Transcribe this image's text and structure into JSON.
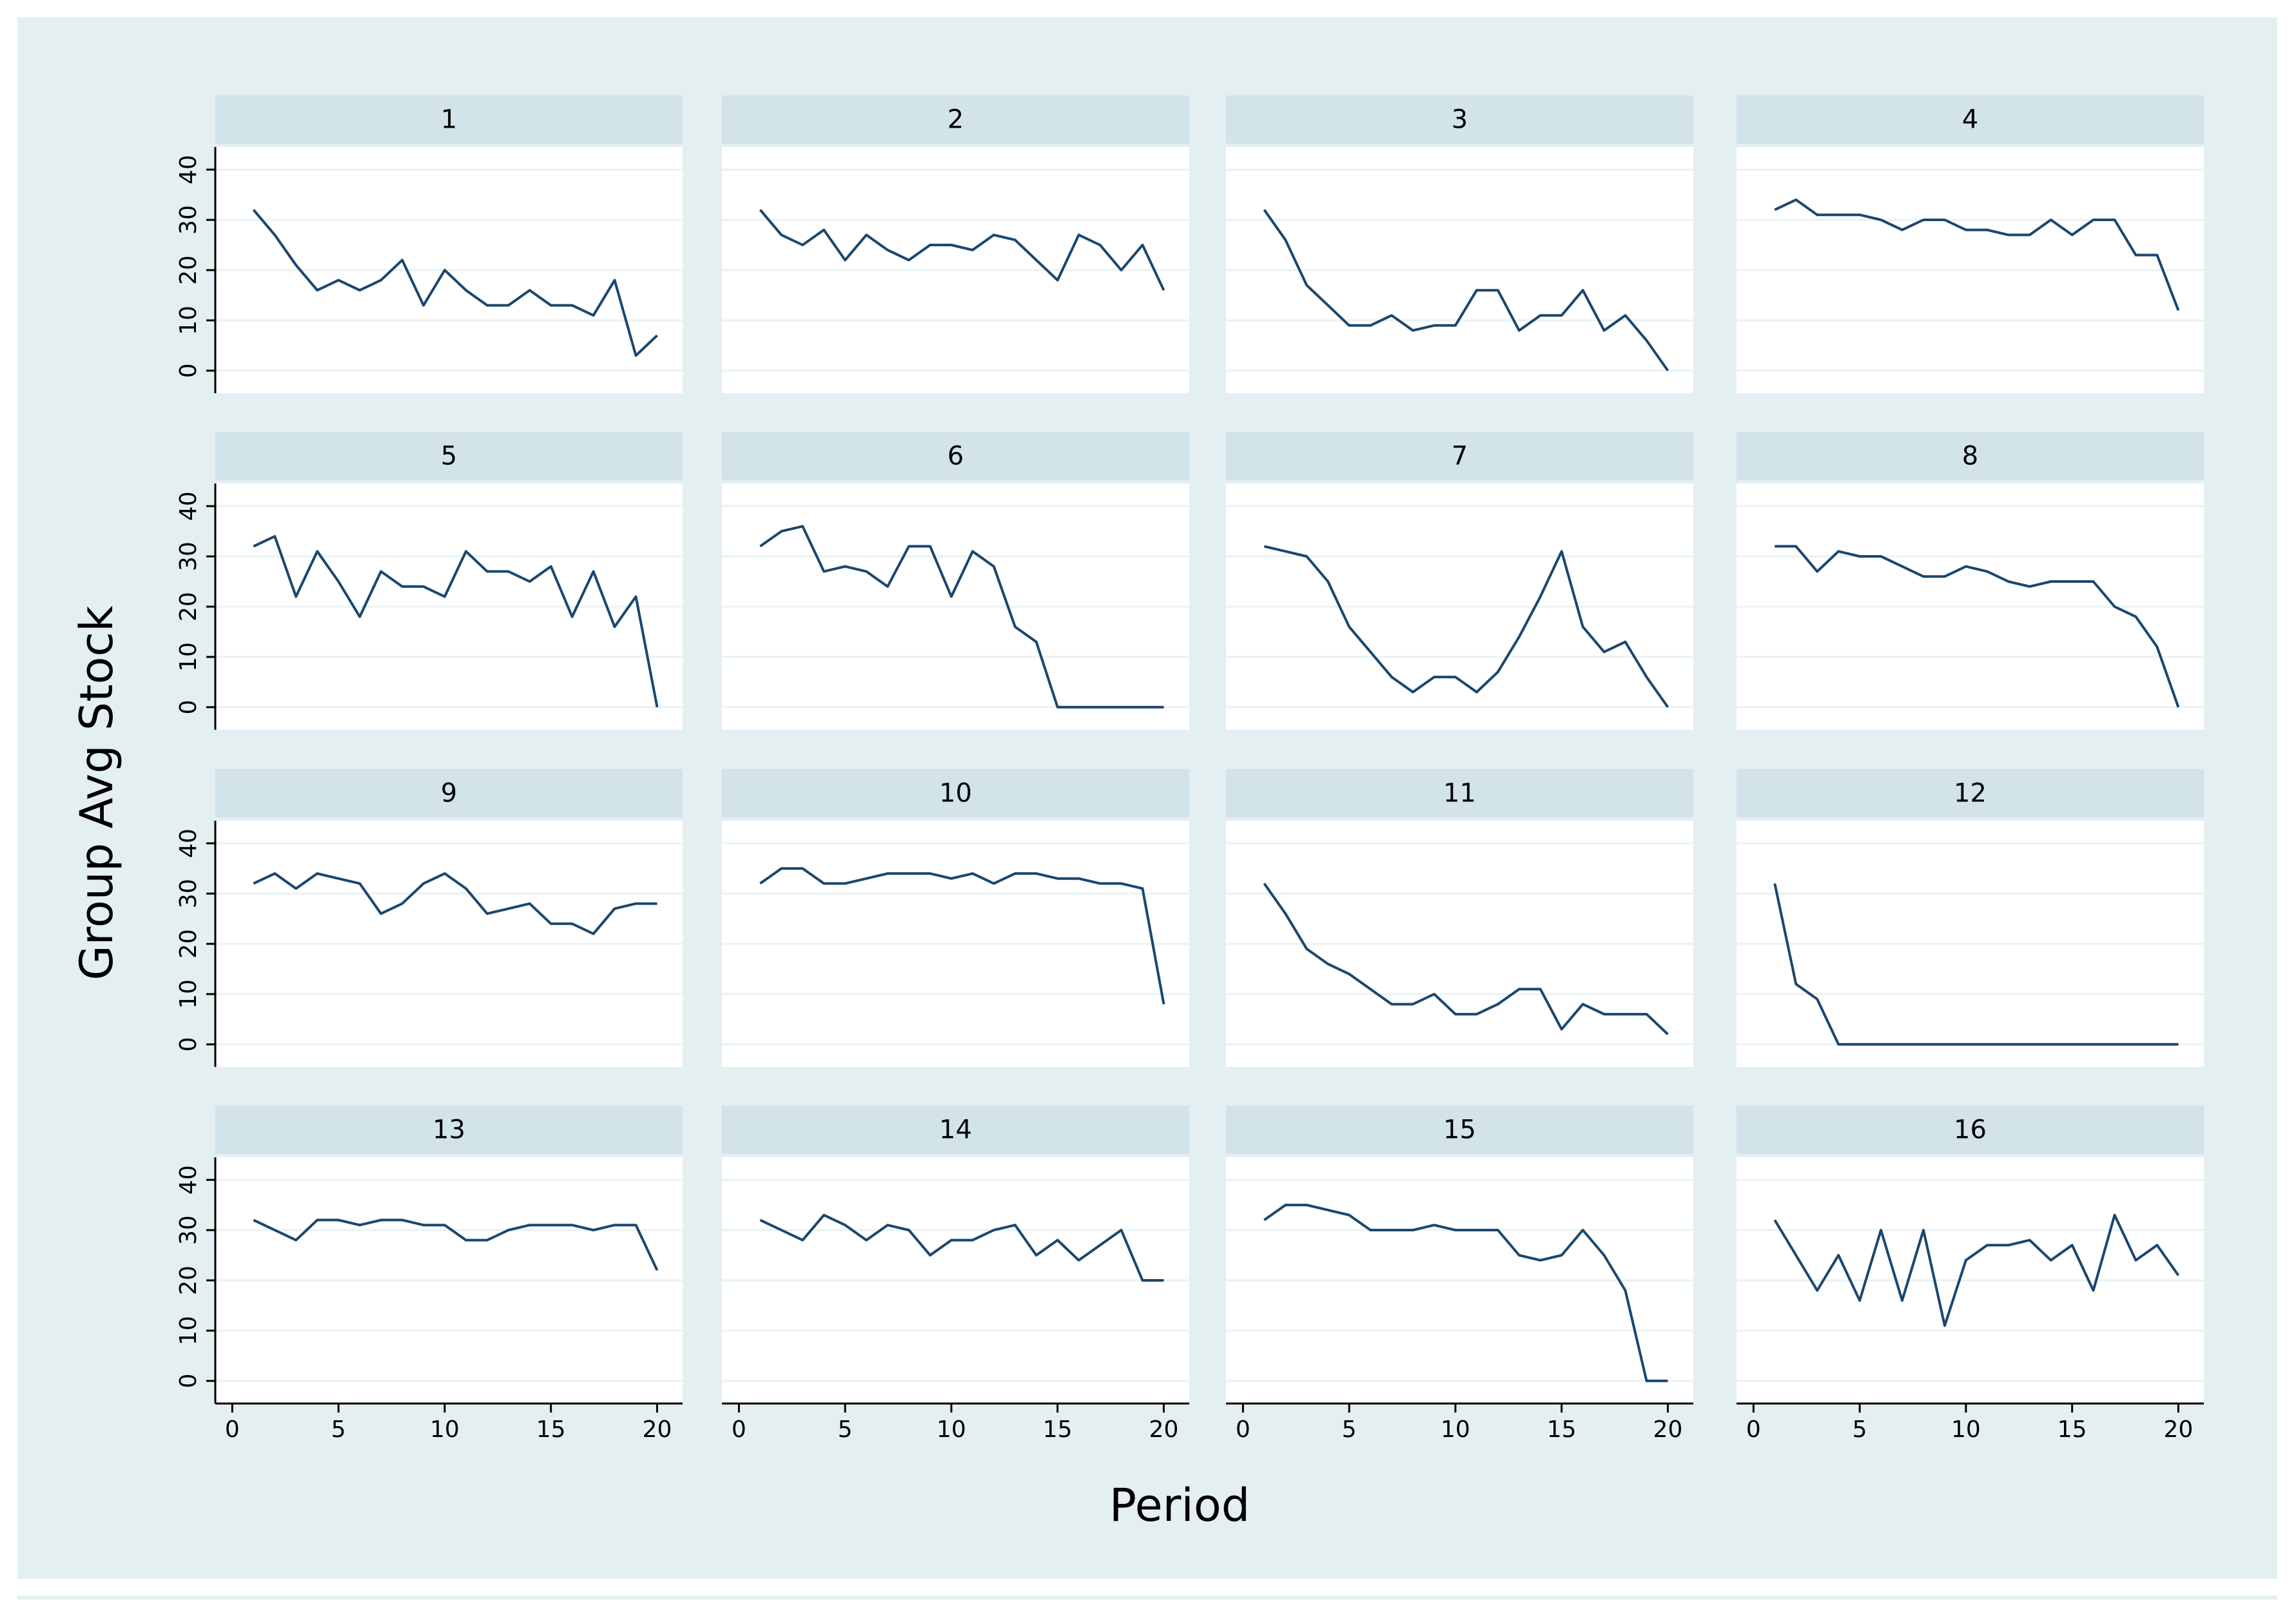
{
  "chart_data": {
    "type": "line",
    "xlabel": "Period",
    "ylabel": "Group Avg Stock",
    "color": "#1a476f",
    "grid": true,
    "x": [
      1,
      2,
      3,
      4,
      5,
      6,
      7,
      8,
      9,
      10,
      11,
      12,
      13,
      14,
      15,
      16,
      17,
      18,
      19,
      20
    ],
    "xlim": [
      -0.8,
      21.2
    ],
    "xticks": [
      0,
      5,
      10,
      15,
      20
    ],
    "ylim": [
      -4.5,
      44.5
    ],
    "yticks": [
      0,
      10,
      20,
      30,
      40
    ],
    "series": [
      {
        "name": "1",
        "values": [
          32,
          27,
          21,
          16,
          18,
          16,
          18,
          22,
          13,
          20,
          16,
          13,
          13,
          16,
          13,
          13,
          11,
          18,
          3,
          7
        ]
      },
      {
        "name": "2",
        "values": [
          32,
          27,
          25,
          28,
          22,
          27,
          24,
          22,
          25,
          25,
          24,
          27,
          26,
          22,
          18,
          27,
          25,
          20,
          25,
          16
        ]
      },
      {
        "name": "3",
        "values": [
          32,
          26,
          17,
          13,
          9,
          9,
          11,
          8,
          9,
          9,
          16,
          16,
          8,
          11,
          11,
          16,
          8,
          11,
          6,
          0
        ]
      },
      {
        "name": "4",
        "values": [
          32,
          34,
          31,
          31,
          31,
          30,
          28,
          30,
          30,
          28,
          28,
          27,
          27,
          30,
          27,
          30,
          30,
          23,
          23,
          12
        ]
      },
      {
        "name": "5",
        "values": [
          32,
          34,
          22,
          31,
          25,
          18,
          27,
          24,
          24,
          22,
          31,
          27,
          27,
          25,
          28,
          18,
          27,
          16,
          22,
          0
        ]
      },
      {
        "name": "6",
        "values": [
          32,
          35,
          36,
          27,
          28,
          27,
          24,
          32,
          32,
          22,
          31,
          28,
          16,
          13,
          0,
          0,
          0,
          0,
          0,
          0
        ]
      },
      {
        "name": "7",
        "values": [
          32,
          31,
          30,
          25,
          16,
          11,
          6,
          3,
          6,
          6,
          3,
          7,
          14,
          22,
          31,
          16,
          11,
          13,
          6,
          0
        ]
      },
      {
        "name": "8",
        "values": [
          32,
          32,
          27,
          31,
          30,
          30,
          28,
          26,
          26,
          28,
          27,
          25,
          24,
          25,
          25,
          25,
          20,
          18,
          12,
          0
        ]
      },
      {
        "name": "9",
        "values": [
          32,
          34,
          31,
          34,
          33,
          32,
          26,
          28,
          32,
          34,
          31,
          26,
          27,
          28,
          24,
          24,
          22,
          27,
          28,
          28
        ]
      },
      {
        "name": "10",
        "values": [
          32,
          35,
          35,
          32,
          32,
          33,
          34,
          34,
          34,
          33,
          34,
          32,
          34,
          34,
          33,
          33,
          32,
          32,
          31,
          8
        ]
      },
      {
        "name": "11",
        "values": [
          32,
          26,
          19,
          16,
          14,
          11,
          8,
          8,
          10,
          6,
          6,
          8,
          11,
          11,
          3,
          8,
          6,
          6,
          6,
          2
        ]
      },
      {
        "name": "12",
        "values": [
          32,
          12,
          9,
          0,
          0,
          0,
          0,
          0,
          0,
          0,
          0,
          0,
          0,
          0,
          0,
          0,
          0,
          0,
          0,
          0
        ]
      },
      {
        "name": "13",
        "values": [
          32,
          30,
          28,
          32,
          32,
          31,
          32,
          32,
          31,
          31,
          28,
          28,
          30,
          31,
          31,
          31,
          30,
          31,
          31,
          22
        ]
      },
      {
        "name": "14",
        "values": [
          32,
          30,
          28,
          33,
          31,
          28,
          31,
          30,
          25,
          28,
          28,
          30,
          31,
          25,
          28,
          24,
          27,
          30,
          20,
          20
        ]
      },
      {
        "name": "15",
        "values": [
          32,
          35,
          35,
          34,
          33,
          30,
          30,
          30,
          31,
          30,
          30,
          30,
          25,
          24,
          25,
          30,
          25,
          18,
          0,
          0
        ]
      },
      {
        "name": "16",
        "values": [
          32,
          25,
          18,
          25,
          16,
          30,
          16,
          30,
          11,
          24,
          27,
          27,
          28,
          24,
          27,
          18,
          33,
          24,
          27,
          21
        ]
      }
    ]
  }
}
